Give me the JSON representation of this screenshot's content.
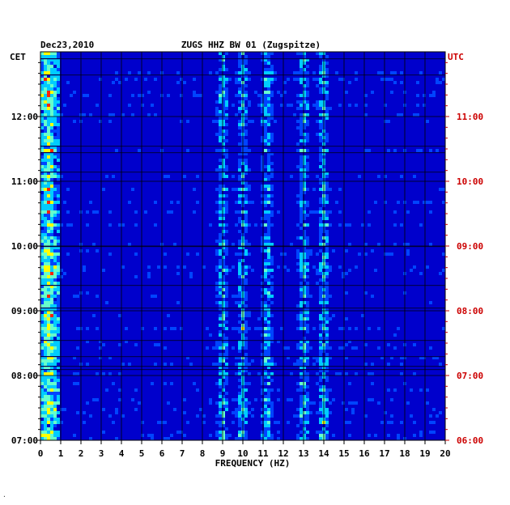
{
  "chart_data": {
    "type": "heatmap",
    "date": "Dec23,2010",
    "title": "ZUGS HHZ BW 01 (Zugspitze)",
    "xlabel": "FREQUENCY (HZ)",
    "left_axis_label": "CET",
    "right_axis_label": "UTC",
    "xlim": [
      0,
      20
    ],
    "x_ticks": [
      "0",
      "1",
      "2",
      "3",
      "4",
      "5",
      "6",
      "7",
      "8",
      "9",
      "10",
      "11",
      "12",
      "13",
      "14",
      "15",
      "16",
      "17",
      "18",
      "19",
      "20"
    ],
    "left_time_ticks": [
      "12:00",
      "11:00",
      "10:00",
      "09:00",
      "08:00",
      "07:00"
    ],
    "right_time_ticks": [
      "11:00",
      "10:00",
      "09:00",
      "08:00",
      "07:00",
      "06:00"
    ],
    "time_range_cet": [
      "07:00",
      "12:50"
    ],
    "strong_frequency_bands_hz": [
      0.3,
      0.5,
      9.0,
      10.0,
      11.2,
      13.0,
      14.0
    ],
    "grid": true,
    "colors": {
      "background_spectrum": "#0000cc",
      "low": "#0044ff",
      "mid": "#00ccff",
      "high": "#ffff00",
      "peak": "#ff2200",
      "utc_labels": "#cc0000"
    }
  }
}
